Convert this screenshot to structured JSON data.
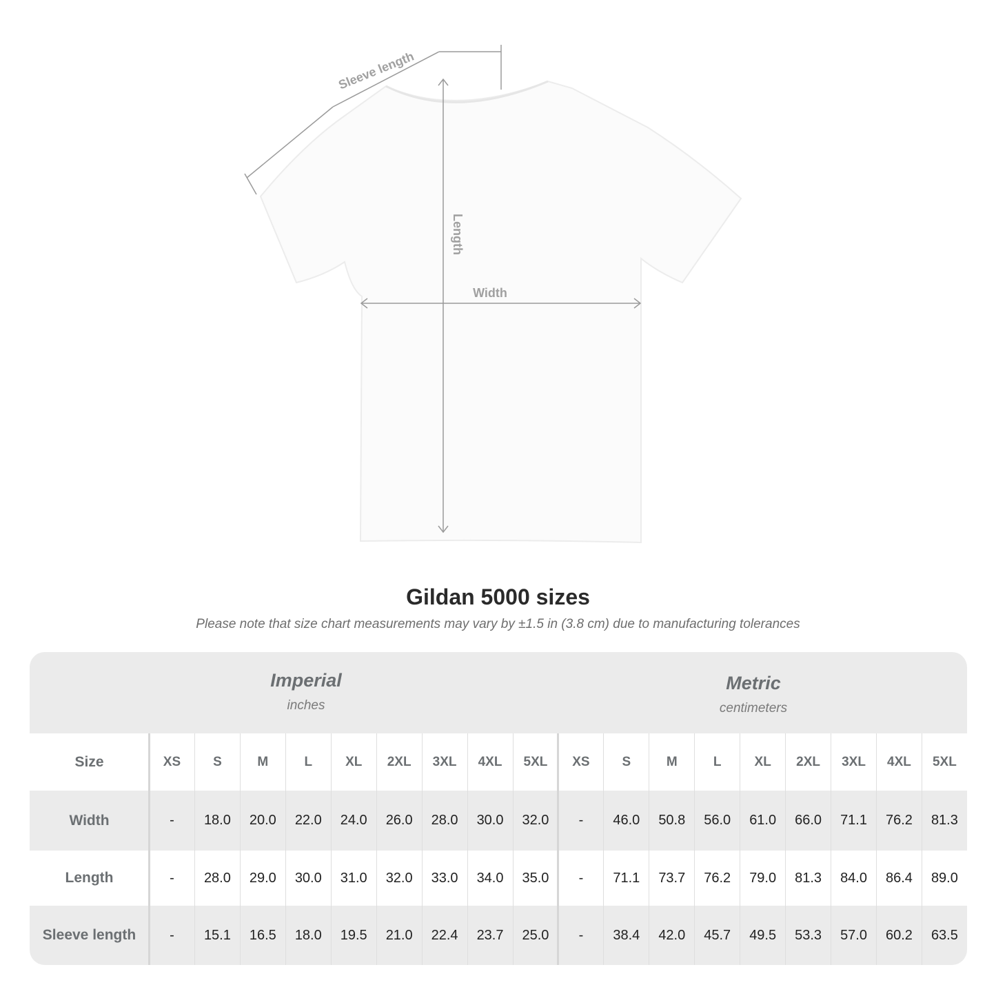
{
  "diagram": {
    "sleeve_label": "Sleeve length",
    "length_label": "Length",
    "width_label": "Width"
  },
  "title": "Gildan 5000 sizes",
  "note": "Please note that size chart measurements may vary by ±1.5 in (3.8 cm) due to manufacturing tolerances",
  "imperial": {
    "title": "Imperial",
    "unit": "inches"
  },
  "metric": {
    "title": "Metric",
    "unit": "centimeters"
  },
  "size_header": "Size",
  "sizes": [
    "XS",
    "S",
    "M",
    "L",
    "XL",
    "2XL",
    "3XL",
    "4XL",
    "5XL",
    "XS",
    "S",
    "M",
    "L",
    "XL",
    "2XL",
    "3XL",
    "4XL",
    "5XL"
  ],
  "rows": [
    {
      "label": "Width",
      "values": [
        "-",
        "18.0",
        "20.0",
        "22.0",
        "24.0",
        "26.0",
        "28.0",
        "30.0",
        "32.0",
        "-",
        "46.0",
        "50.8",
        "56.0",
        "61.0",
        "66.0",
        "71.1",
        "76.2",
        "81.3"
      ]
    },
    {
      "label": "Length",
      "values": [
        "-",
        "28.0",
        "29.0",
        "30.0",
        "31.0",
        "32.0",
        "33.0",
        "34.0",
        "35.0",
        "-",
        "71.1",
        "73.7",
        "76.2",
        "79.0",
        "81.3",
        "84.0",
        "86.4",
        "89.0"
      ]
    },
    {
      "label": "Sleeve length",
      "values": [
        "-",
        "15.1",
        "16.5",
        "18.0",
        "19.5",
        "21.0",
        "22.4",
        "23.7",
        "25.0",
        "-",
        "38.4",
        "42.0",
        "45.7",
        "49.5",
        "53.3",
        "57.0",
        "60.2",
        "63.5"
      ]
    }
  ],
  "colors": {
    "band": "#ebebeb",
    "label": "#6b6f72",
    "measure_line": "#9a9a9a"
  }
}
